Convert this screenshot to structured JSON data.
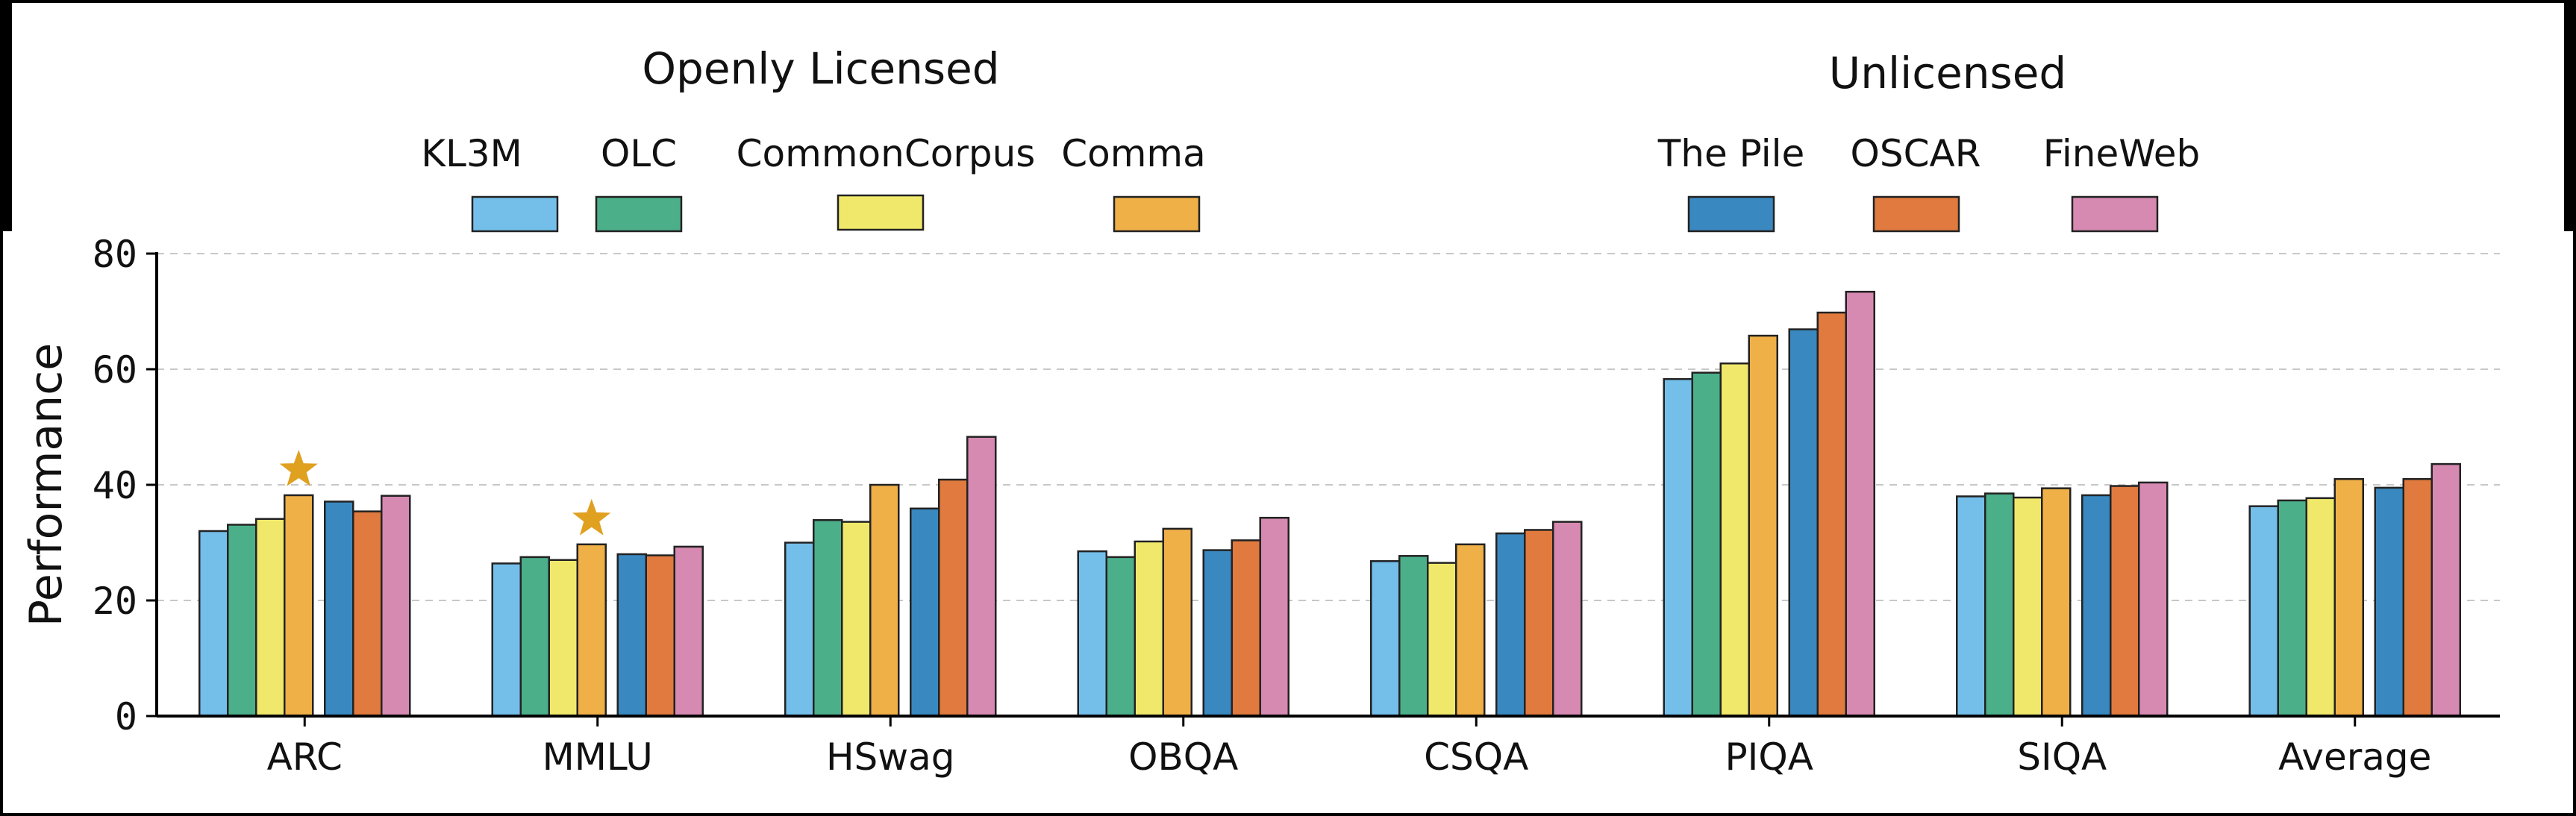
{
  "chart_data": {
    "type": "bar",
    "title": "",
    "xlabel": "",
    "ylabel": "Performance",
    "ylim": [
      0,
      80
    ],
    "yticks": [
      0,
      20,
      40,
      60,
      80
    ],
    "grid": "horizontal dashed",
    "legend_placement": "top",
    "categories": [
      "ARC",
      "MMLU",
      "HSwag",
      "OBQA",
      "CSQA",
      "PIQA",
      "SIQA",
      "Average"
    ],
    "legend_groups": [
      {
        "title": "Openly Licensed",
        "series": [
          "KL3M",
          "OLC",
          "CommonCorpus",
          "Comma"
        ]
      },
      {
        "title": "Unlicensed",
        "series": [
          "The Pile",
          "OSCAR",
          "FineWeb"
        ]
      }
    ],
    "series": [
      {
        "name": "KL3M",
        "color": "#74bfea",
        "values": [
          32.0,
          26.4,
          30.0,
          28.5,
          26.8,
          58.3,
          38.0,
          36.3
        ]
      },
      {
        "name": "OLC",
        "color": "#4baf8a",
        "values": [
          33.1,
          27.5,
          33.9,
          27.5,
          27.7,
          59.4,
          38.5,
          37.3
        ]
      },
      {
        "name": "CommonCorpus",
        "color": "#f0e86a",
        "values": [
          34.1,
          27.0,
          33.6,
          30.2,
          26.5,
          61.0,
          37.8,
          37.7
        ]
      },
      {
        "name": "Comma",
        "color": "#f0b048",
        "values": [
          38.2,
          29.7,
          40.0,
          32.4,
          29.7,
          65.8,
          39.4,
          41.0
        ]
      },
      {
        "name": "The Pile",
        "color": "#3a88c0",
        "values": [
          37.1,
          28.0,
          35.9,
          28.7,
          31.6,
          66.9,
          38.2,
          39.5
        ]
      },
      {
        "name": "OSCAR",
        "color": "#e07a3e",
        "values": [
          35.4,
          27.8,
          40.9,
          30.4,
          32.2,
          69.8,
          39.8,
          41.0
        ]
      },
      {
        "name": "FineWeb",
        "color": "#d68ab2",
        "values": [
          38.1,
          29.3,
          48.3,
          34.3,
          33.6,
          73.4,
          40.4,
          43.6
        ]
      }
    ],
    "annotations": [
      {
        "type": "star",
        "category": "ARC",
        "series": "Comma",
        "color": "#e0a020"
      },
      {
        "type": "star",
        "category": "MMLU",
        "series": "Comma",
        "color": "#e0a020"
      }
    ]
  }
}
